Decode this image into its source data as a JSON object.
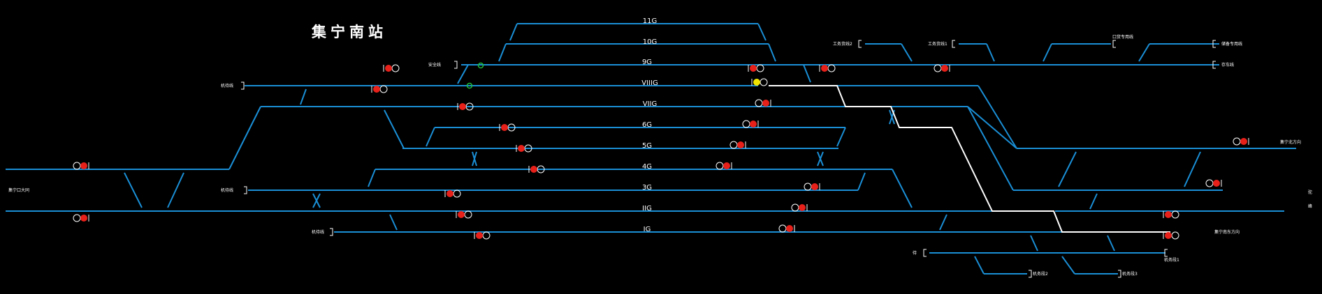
{
  "station_title": "集宁南站",
  "colors": {
    "background": "#000000",
    "track": "#1a8fd6",
    "route": "#ffffff",
    "signal_red": "#e8201a",
    "signal_yellow": "#f2e600",
    "signal_green": "#1fbf3a"
  },
  "track_labels": [
    "11G",
    "10G",
    "9G",
    "VIIIG",
    "VIIG",
    "6G",
    "5G",
    "4G",
    "3G",
    "IIG",
    "IG"
  ],
  "side_labels": {
    "anquan": "安全线",
    "jiyou_1": "机待线",
    "jiyou_2": "机待线",
    "jiyou_3": "机待线",
    "west_main": "集宁口大同",
    "work_2": "工务货线2",
    "work_1": "工务货线1",
    "factory": "口货专用线",
    "dedicated": "储备专用线",
    "storage": "存车线",
    "east_1": "集宁北方向",
    "east_2": "集宁南东方向",
    "dunan": "待",
    "jiqi_1": "机务段1",
    "jiqi_2": "机务段2",
    "jiqi_3": "机务段3",
    "edge_1": "驼",
    "edge_2": "峰"
  },
  "signals": [
    {
      "kind": "red",
      "dir": "right"
    },
    {
      "kind": "red",
      "dir": "right"
    },
    {
      "kind": "yellow",
      "dir": "left"
    },
    {
      "kind": "red",
      "dir": "left"
    },
    {
      "kind": "red",
      "dir": "left"
    },
    {
      "kind": "red",
      "dir": "left"
    },
    {
      "kind": "red",
      "dir": "left"
    },
    {
      "kind": "red",
      "dir": "left"
    },
    {
      "kind": "red",
      "dir": "left"
    },
    {
      "kind": "red",
      "dir": "left"
    },
    {
      "kind": "red",
      "dir": "left"
    },
    {
      "kind": "red",
      "dir": "right"
    },
    {
      "kind": "red",
      "dir": "right"
    },
    {
      "kind": "red",
      "dir": "right"
    },
    {
      "kind": "red",
      "dir": "right"
    },
    {
      "kind": "red",
      "dir": "right"
    },
    {
      "kind": "red",
      "dir": "right"
    },
    {
      "kind": "red",
      "dir": "right"
    },
    {
      "kind": "red",
      "dir": "right"
    },
    {
      "kind": "red",
      "dir": "right"
    },
    {
      "kind": "red",
      "dir": "left"
    },
    {
      "kind": "red",
      "dir": "left"
    },
    {
      "kind": "red",
      "dir": "right"
    },
    {
      "kind": "red",
      "dir": "left"
    },
    {
      "kind": "red",
      "dir": "left"
    },
    {
      "kind": "red",
      "dir": "left"
    }
  ]
}
